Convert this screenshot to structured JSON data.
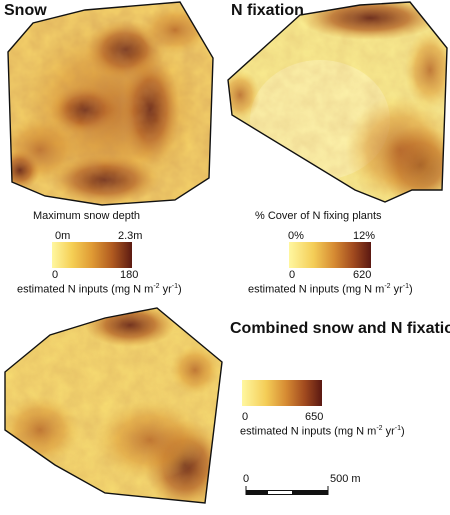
{
  "panels": {
    "snow": {
      "title": "Snow",
      "legend_title": "Maximum snow depth",
      "scale_top": [
        "0m",
        "2.3m"
      ],
      "scale_bottom": [
        "0",
        "180"
      ]
    },
    "nfix": {
      "title": "N fixation",
      "legend_title": "% Cover of N fixing plants",
      "scale_top": [
        "0%",
        "12%"
      ],
      "scale_bottom": [
        "0",
        "620"
      ]
    },
    "combined": {
      "title": "Combined snow and N fixation",
      "scale_bottom": [
        "0",
        "650"
      ]
    }
  },
  "units_label": "estimated N inputs (mg N m",
  "units_sup1": "-2",
  "units_mid": " yr",
  "units_sup2": "-1",
  "units_end": ")",
  "scalebar": {
    "start": "0",
    "end": "500 m"
  },
  "colors": {
    "low": "#fff7a0",
    "mid": "#df9a34",
    "high": "#5c1a12",
    "outline": "#111111"
  }
}
